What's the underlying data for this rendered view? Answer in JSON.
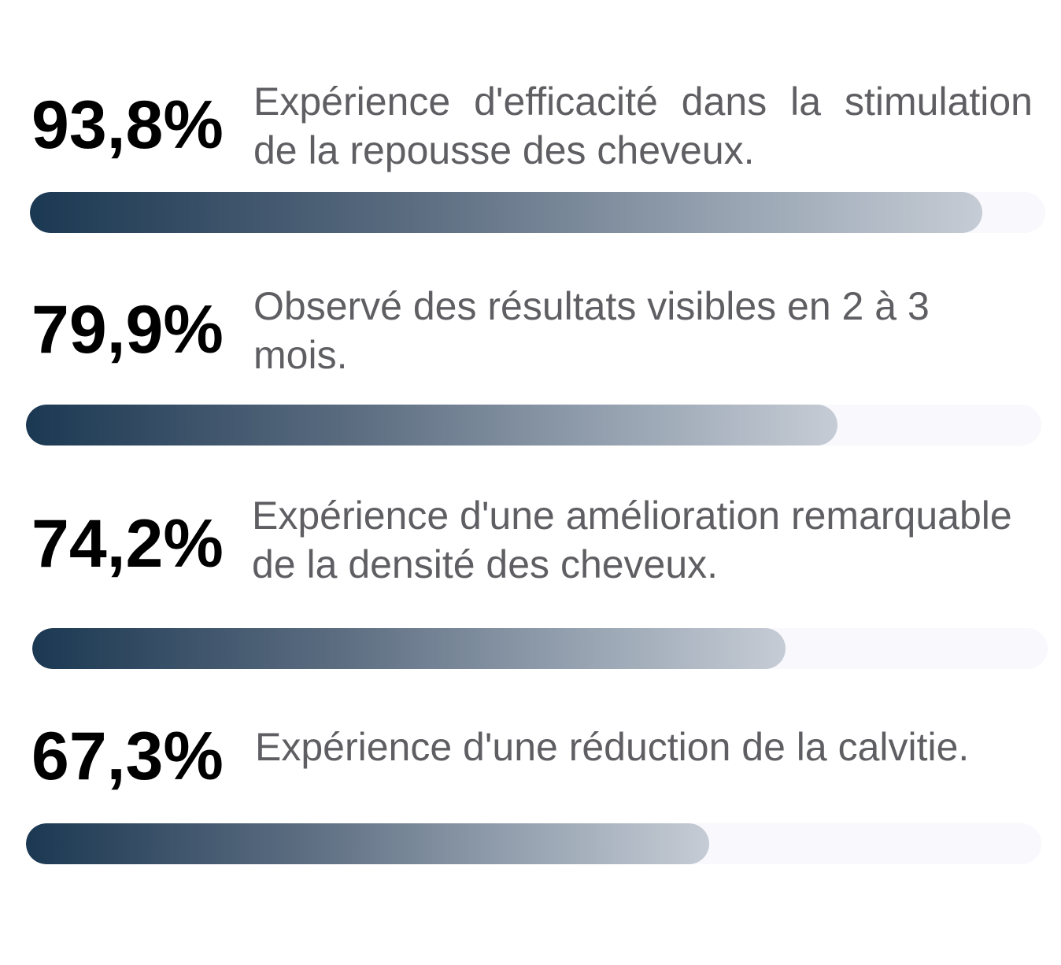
{
  "chart_data": {
    "type": "bar",
    "orientation": "horizontal",
    "ylim": [
      0,
      100
    ],
    "categories": [
      "Expérience d'efficacité dans la stimulation de la repousse des cheveux.",
      "Observé des résultats visibles en 2 à 3 mois.",
      "Expérience d'une amélioration remarquable de la densité des cheveux.",
      "Expérience d'une réduction de la calvitie."
    ],
    "values": [
      93.8,
      79.9,
      74.2,
      67.3
    ],
    "value_labels": [
      "93,8%",
      "79,9%",
      "74,2%",
      "67,3%"
    ],
    "colors": {
      "bar_start": "#1b3852",
      "bar_end": "#c6ccd5",
      "track": "#f8f8fd",
      "value_text": "#000000",
      "label_text": "#5f5f63"
    }
  }
}
